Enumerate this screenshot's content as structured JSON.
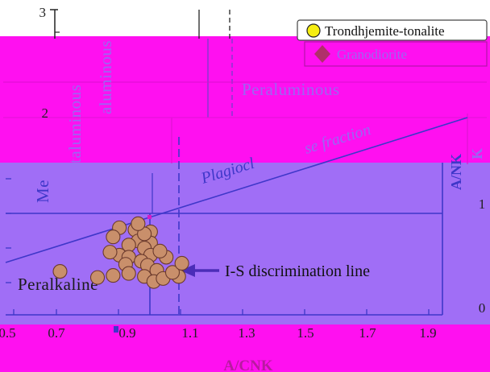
{
  "chart_data": {
    "type": "scatter",
    "xlabel": "A/CNK",
    "ylabel_left": "A/NK",
    "xlim": [
      0.5,
      2.0
    ],
    "ylim": [
      0,
      3
    ],
    "x_ticks": [
      "0.5",
      "0.7",
      "0.9",
      "1.1",
      "1.3",
      "1.5",
      "1.7",
      "1.9"
    ],
    "y_ticks": [
      "1",
      "2",
      "3"
    ],
    "y_ticks_right": [
      "1",
      "0"
    ],
    "regions": {
      "metaluminous": "Metaluminous",
      "metaluminous_visible": "Me",
      "metaluminous_partial": "taluminous",
      "metaluminous_partial_upper": "aluminous",
      "peraluminous": "Peraluminous",
      "peralkaline": "Peralkaline"
    },
    "boundaries": {
      "vertical_A_CNK": 1.0,
      "horizontal_A_NK": 1.0,
      "i_s_line_x": 1.1,
      "upper_dashed_x": 1.19,
      "upper_solid_x": 1.01
    },
    "fraction_line": {
      "label_visible_start": "Plagiocl",
      "label_visible_end": "se fraction",
      "x": [
        0.5,
        2.0
      ],
      "y": [
        0.5,
        2.15
      ]
    },
    "annotation": {
      "text": "I-S discrimination line"
    },
    "legend": {
      "placement": "top-right",
      "entries": [
        {
          "name": "Trondhjemite-tonalite",
          "marker": "circle",
          "color": "#f6ee12"
        },
        {
          "name": "Granodiorite",
          "marker": "diamond",
          "color": "#b0306a"
        }
      ]
    },
    "series": [
      {
        "name": "Granodiorite",
        "marker": "circle",
        "color": "#c98f6b",
        "points": [
          [
            0.85,
            1.62
          ],
          [
            0.9,
            1.6
          ],
          [
            0.95,
            1.58
          ],
          [
            0.83,
            1.53
          ],
          [
            0.91,
            1.49
          ],
          [
            0.95,
            1.47
          ],
          [
            0.88,
            1.45
          ],
          [
            0.93,
            1.42
          ],
          [
            0.85,
            1.35
          ],
          [
            0.82,
            1.38
          ],
          [
            0.88,
            1.33
          ],
          [
            0.95,
            1.35
          ],
          [
            0.92,
            1.29
          ],
          [
            0.87,
            1.26
          ],
          [
            0.94,
            1.25
          ],
          [
            0.97,
            1.2
          ],
          [
            1.0,
            1.33
          ],
          [
            0.66,
            1.19
          ],
          [
            0.78,
            1.13
          ],
          [
            0.83,
            1.15
          ],
          [
            0.88,
            1.17
          ],
          [
            0.93,
            1.14
          ],
          [
            0.96,
            1.09
          ],
          [
            0.99,
            1.12
          ],
          [
            1.04,
            1.14
          ],
          [
            1.02,
            1.18
          ],
          [
            1.05,
            1.27
          ],
          [
            0.98,
            1.39
          ],
          [
            0.93,
            1.56
          ],
          [
            0.91,
            1.66
          ]
        ]
      }
    ],
    "grid": false,
    "colors": {
      "magenta": "#ff10f0",
      "purple_region": "#a06ef6",
      "dark_purple": "#6b41c9",
      "line_blue": "#3f37c9",
      "label_purple": "#9b65f3",
      "white": "#ffffff"
    }
  }
}
